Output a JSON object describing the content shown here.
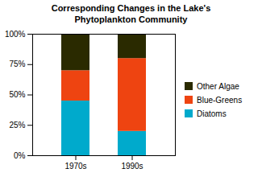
{
  "chart_data": {
    "type": "bar",
    "stacked": true,
    "title": "Corresponding Changes in the Lake's\nPhytoplankton Community",
    "categories": [
      "1970s",
      "1990s"
    ],
    "series": [
      {
        "name": "Diatoms",
        "color": "#00AACC",
        "values": [
          45,
          20
        ]
      },
      {
        "name": "Blue-Greens",
        "color": "#EE4411",
        "values": [
          25,
          60
        ]
      },
      {
        "name": "Other Algae",
        "color": "#2A2A00",
        "values": [
          30,
          20
        ]
      }
    ],
    "ylim": [
      0,
      100
    ],
    "yticks": [
      {
        "value": 0,
        "label": "0%"
      },
      {
        "value": 25,
        "label": "25%"
      },
      {
        "value": 50,
        "label": "50%"
      },
      {
        "value": 75,
        "label": "75%"
      },
      {
        "value": 100,
        "label": "100%"
      }
    ],
    "grid": false,
    "legend": "right"
  }
}
